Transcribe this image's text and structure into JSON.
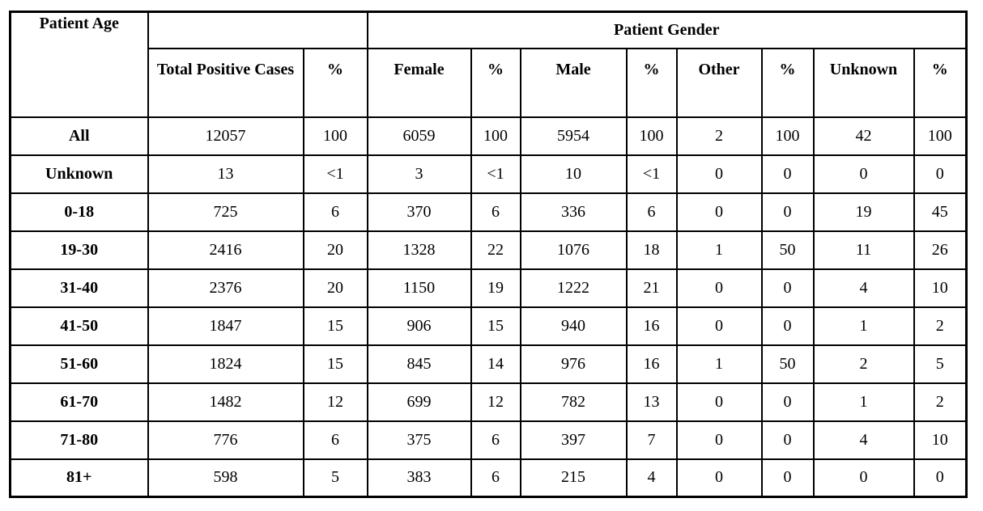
{
  "table": {
    "corner_header": "Patient Age",
    "gender_header": "Patient Gender",
    "columns": [
      "Total Positive Cases",
      "%",
      "Female",
      "%",
      "Male",
      "%",
      "Other",
      "%",
      "Unknown",
      "%"
    ],
    "rows": [
      {
        "label": "All",
        "values": [
          "12057",
          "100",
          "6059",
          "100",
          "5954",
          "100",
          "2",
          "100",
          "42",
          "100"
        ]
      },
      {
        "label": "Unknown",
        "values": [
          "13",
          "<1",
          "3",
          "<1",
          "10",
          "<1",
          "0",
          "0",
          "0",
          "0"
        ]
      },
      {
        "label": "0-18",
        "values": [
          "725",
          "6",
          "370",
          "6",
          "336",
          "6",
          "0",
          "0",
          "19",
          "45"
        ]
      },
      {
        "label": "19-30",
        "values": [
          "2416",
          "20",
          "1328",
          "22",
          "1076",
          "18",
          "1",
          "50",
          "11",
          "26"
        ]
      },
      {
        "label": "31-40",
        "values": [
          "2376",
          "20",
          "1150",
          "19",
          "1222",
          "21",
          "0",
          "0",
          "4",
          "10"
        ]
      },
      {
        "label": "41-50",
        "values": [
          "1847",
          "15",
          "906",
          "15",
          "940",
          "16",
          "0",
          "0",
          "1",
          "2"
        ]
      },
      {
        "label": "51-60",
        "values": [
          "1824",
          "15",
          "845",
          "14",
          "976",
          "16",
          "1",
          "50",
          "2",
          "5"
        ]
      },
      {
        "label": "61-70",
        "values": [
          "1482",
          "12",
          "699",
          "12",
          "782",
          "13",
          "0",
          "0",
          "1",
          "2"
        ]
      },
      {
        "label": "71-80",
        "values": [
          "776",
          "6",
          "375",
          "6",
          "397",
          "7",
          "0",
          "0",
          "4",
          "10"
        ]
      },
      {
        "label": "81+",
        "values": [
          "598",
          "5",
          "383",
          "6",
          "215",
          "4",
          "0",
          "0",
          "0",
          "0"
        ]
      }
    ]
  }
}
